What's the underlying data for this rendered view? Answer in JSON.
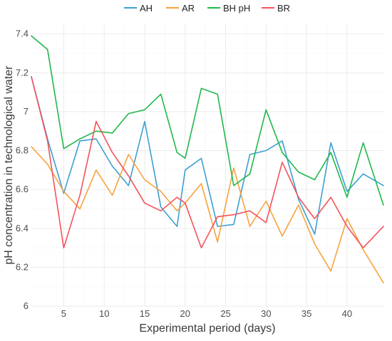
{
  "chart_data": {
    "type": "line",
    "title": "",
    "xlabel": "Experimental period (days)",
    "ylabel": "pH concentration in technological water",
    "xlim": [
      1,
      44.5
    ],
    "ylim": [
      6,
      7.45
    ],
    "x_ticks": [
      5,
      10,
      15,
      20,
      25,
      30,
      35,
      40
    ],
    "x_tick_labels": [
      "5",
      "10",
      "15",
      "20",
      "25",
      "30",
      "35",
      "40"
    ],
    "y_ticks": [
      6,
      6.2,
      6.4,
      6.6,
      6.8,
      7,
      7.2,
      7.4
    ],
    "y_tick_labels": [
      "6",
      "6.2",
      "6.4",
      "6.6",
      "6.8",
      "7",
      "7.2",
      "7.4"
    ],
    "grid": true,
    "legend_position": "top",
    "x": [
      1,
      3,
      5,
      7,
      9,
      11,
      13,
      15,
      17,
      19,
      20,
      22,
      24,
      26,
      28,
      30,
      32,
      34,
      36,
      38,
      40,
      42,
      44.5
    ],
    "series": [
      {
        "name": "AH",
        "color": "#3c9fd2",
        "values": [
          7.18,
          6.86,
          6.58,
          6.85,
          6.86,
          6.72,
          6.62,
          6.95,
          6.51,
          6.41,
          6.7,
          6.76,
          6.41,
          6.42,
          6.78,
          6.8,
          6.85,
          6.55,
          6.37,
          6.84,
          6.59,
          6.68,
          6.62
        ]
      },
      {
        "name": "AR",
        "color": "#f7a23e",
        "values": [
          6.82,
          6.73,
          6.59,
          6.5,
          6.7,
          6.57,
          6.78,
          6.65,
          6.59,
          6.49,
          6.53,
          6.63,
          6.33,
          6.71,
          6.41,
          6.54,
          6.36,
          6.52,
          6.32,
          6.18,
          6.45,
          6.29,
          6.12
        ]
      },
      {
        "name": "BH pH",
        "color": "#1fb84c",
        "values": [
          7.39,
          7.32,
          6.81,
          6.86,
          6.9,
          6.89,
          6.99,
          7.01,
          7.09,
          6.79,
          6.76,
          7.12,
          7.09,
          6.62,
          6.68,
          7.01,
          6.79,
          6.69,
          6.65,
          6.79,
          6.56,
          6.84,
          6.52
        ]
      },
      {
        "name": "BR",
        "color": "#f4525a",
        "values": [
          7.18,
          6.85,
          6.3,
          6.57,
          6.95,
          6.79,
          6.67,
          6.53,
          6.49,
          6.56,
          6.53,
          6.3,
          6.46,
          6.47,
          6.49,
          6.43,
          6.74,
          6.56,
          6.45,
          6.56,
          6.41,
          6.3,
          6.41
        ]
      }
    ]
  }
}
